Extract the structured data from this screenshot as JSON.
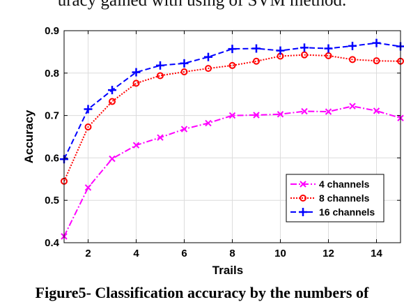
{
  "page": {
    "top_text": "uracy gained with using of SVM method.",
    "caption": "Figure5- Classification accuracy by the numbers of"
  },
  "chart_data": {
    "type": "line",
    "title": "",
    "xlabel": "Trails",
    "ylabel": "Accuracy",
    "xlim": [
      1,
      15
    ],
    "ylim": [
      0.4,
      0.9
    ],
    "xticks": [
      2,
      4,
      6,
      8,
      10,
      12,
      14
    ],
    "yticks": [
      0.4,
      0.5,
      0.6,
      0.7,
      0.8,
      0.9
    ],
    "grid": true,
    "legend_position": "lower-right",
    "x": [
      1,
      2,
      3,
      4,
      5,
      6,
      7,
      8,
      9,
      10,
      11,
      12,
      13,
      14,
      15
    ],
    "series": [
      {
        "name": "4 channels",
        "color": "#ff00ff",
        "line_style": "dash-dot",
        "marker": "x",
        "values": [
          0.415,
          0.53,
          0.598,
          0.63,
          0.648,
          0.668,
          0.682,
          0.7,
          0.701,
          0.703,
          0.71,
          0.709,
          0.722,
          0.711,
          0.694
        ]
      },
      {
        "name": "8 channels",
        "color": "#ff0000",
        "line_style": "dotted",
        "marker": "o",
        "values": [
          0.545,
          0.673,
          0.733,
          0.776,
          0.794,
          0.803,
          0.811,
          0.818,
          0.828,
          0.84,
          0.843,
          0.841,
          0.832,
          0.829,
          0.828
        ]
      },
      {
        "name": "16 channels",
        "color": "#0000ff",
        "line_style": "dashed",
        "marker": "+",
        "values": [
          0.597,
          0.715,
          0.76,
          0.802,
          0.818,
          0.823,
          0.838,
          0.857,
          0.858,
          0.853,
          0.86,
          0.858,
          0.864,
          0.871,
          0.863
        ]
      }
    ]
  }
}
